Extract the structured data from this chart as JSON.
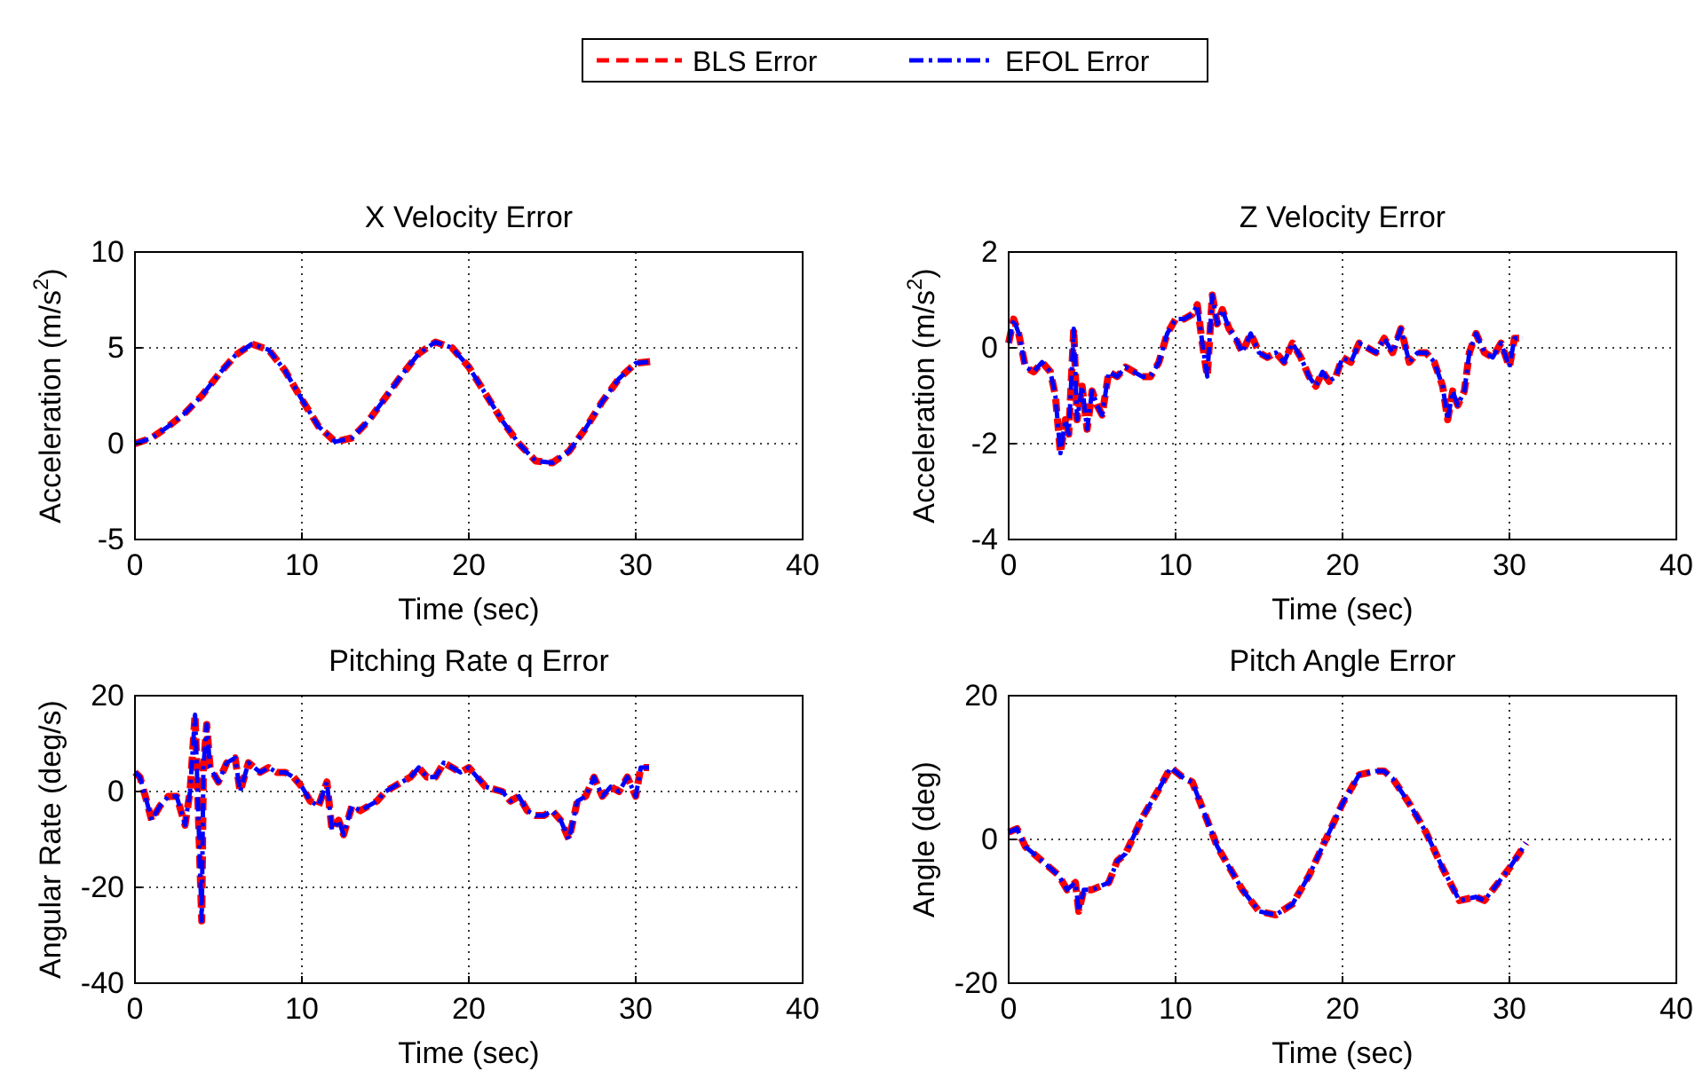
{
  "chart_data": [
    {
      "type": "line",
      "title": "X Velocity Error",
      "xlabel": "Time (sec)",
      "ylabel": "Acceleration (m/s$^{2}$)",
      "xlim": [
        0,
        40
      ],
      "xticks": [
        0,
        10,
        20,
        30,
        40
      ],
      "ylim": [
        -5,
        10
      ],
      "yticks": [
        -5,
        0,
        5,
        10
      ],
      "grid": true,
      "legend": "top",
      "x": [
        0,
        1,
        2,
        3,
        4,
        5,
        6,
        7,
        8,
        9,
        10,
        11,
        12,
        13,
        14,
        15,
        16,
        17,
        18,
        19,
        20,
        21,
        22,
        23,
        24,
        25,
        26,
        27,
        28,
        29,
        30,
        31
      ],
      "series": [
        {
          "name": "BLS Error",
          "color": "#ff0000",
          "line_style": "dashed",
          "values": [
            0,
            0.3,
            0.9,
            1.6,
            2.5,
            3.6,
            4.6,
            5.2,
            4.9,
            3.8,
            2.3,
            0.9,
            0.1,
            0.3,
            1.2,
            2.4,
            3.6,
            4.7,
            5.3,
            5.0,
            4.0,
            2.6,
            1.2,
            0.0,
            -0.9,
            -1.0,
            -0.4,
            0.8,
            2.2,
            3.4,
            4.2,
            4.3
          ]
        },
        {
          "name": "EFOL Error",
          "color": "#0000ff",
          "line_style": "dashdot",
          "values": [
            0,
            0.3,
            0.9,
            1.6,
            2.5,
            3.6,
            4.6,
            5.2,
            4.9,
            3.8,
            2.3,
            0.9,
            0.1,
            0.3,
            1.2,
            2.4,
            3.6,
            4.7,
            5.3,
            5.0,
            4.0,
            2.6,
            1.2,
            0.0,
            -0.9,
            -1.0,
            -0.4,
            0.8,
            2.2,
            3.4,
            4.2,
            4.3
          ]
        }
      ]
    },
    {
      "type": "line",
      "title": "Z Velocity Error",
      "xlabel": "Time (sec)",
      "ylabel": "Acceleration (m/s$^{2}$)",
      "xlim": [
        0,
        40
      ],
      "xticks": [
        0,
        10,
        20,
        30,
        40
      ],
      "ylim": [
        -4,
        2
      ],
      "yticks": [
        -4,
        -2,
        0,
        2
      ],
      "grid": true,
      "x": [
        0,
        0.3,
        0.6,
        1,
        1.5,
        2,
        2.5,
        2.8,
        3.1,
        3.4,
        3.6,
        3.9,
        4.1,
        4.4,
        4.7,
        5,
        5.3,
        5.6,
        6,
        6.5,
        7,
        7.5,
        8,
        8.5,
        9,
        9.5,
        10,
        10.5,
        11,
        11.3,
        11.6,
        11.9,
        12.2,
        12.5,
        12.8,
        13.2,
        13.6,
        14,
        14.5,
        15,
        15.5,
        16,
        16.5,
        17,
        17.5,
        18,
        18.4,
        18.8,
        19.2,
        19.6,
        20,
        20.5,
        21,
        21.5,
        22,
        22.5,
        23,
        23.5,
        24,
        24.5,
        25,
        25.5,
        26,
        26.3,
        26.6,
        26.9,
        27.3,
        27.6,
        28,
        28.5,
        29,
        29.5,
        30,
        30.3,
        30.8
      ],
      "series": [
        {
          "color": "#ff0000",
          "line_style": "dashed",
          "values": [
            0.1,
            0.6,
            0.3,
            -0.4,
            -0.5,
            -0.3,
            -0.5,
            -1.0,
            -2.2,
            -1.5,
            -1.8,
            0.4,
            -1.5,
            -0.8,
            -1.7,
            -0.9,
            -1.2,
            -1.4,
            -0.5,
            -0.6,
            -0.4,
            -0.5,
            -0.6,
            -0.6,
            -0.3,
            0.3,
            0.6,
            0.6,
            0.7,
            0.9,
            0.1,
            -0.6,
            1.1,
            0.5,
            0.8,
            0.4,
            0.2,
            -0.1,
            0.3,
            -0.1,
            -0.2,
            -0.1,
            -0.3,
            0.1,
            -0.2,
            -0.6,
            -0.8,
            -0.5,
            -0.7,
            -0.6,
            -0.2,
            -0.3,
            0.1,
            0.0,
            -0.1,
            0.2,
            -0.1,
            0.4,
            -0.3,
            -0.1,
            -0.1,
            -0.3,
            -0.8,
            -1.5,
            -0.9,
            -1.2,
            -0.9,
            -0.1,
            0.3,
            -0.1,
            -0.2,
            0.1,
            -0.4,
            0.2,
            0.2
          ]
        },
        {
          "color": "#0000ff",
          "line_style": "dashdot",
          "values": [
            0.1,
            0.6,
            0.3,
            -0.4,
            -0.5,
            -0.3,
            -0.5,
            -1.0,
            -2.2,
            -1.5,
            -1.8,
            0.4,
            -1.5,
            -0.8,
            -1.7,
            -0.9,
            -1.2,
            -1.4,
            -0.5,
            -0.6,
            -0.4,
            -0.5,
            -0.6,
            -0.6,
            -0.3,
            0.3,
            0.6,
            0.6,
            0.7,
            0.9,
            0.1,
            -0.6,
            1.1,
            0.5,
            0.8,
            0.4,
            0.2,
            -0.1,
            0.3,
            -0.1,
            -0.2,
            -0.1,
            -0.3,
            0.1,
            -0.2,
            -0.6,
            -0.8,
            -0.5,
            -0.7,
            -0.6,
            -0.2,
            -0.3,
            0.1,
            0.0,
            -0.1,
            0.2,
            -0.1,
            0.4,
            -0.3,
            -0.1,
            -0.1,
            -0.3,
            -0.8,
            -1.5,
            -0.9,
            -1.2,
            -0.9,
            -0.1,
            0.3,
            -0.1,
            -0.2,
            0.1,
            -0.4,
            0.2,
            0.2
          ]
        }
      ]
    },
    {
      "type": "line",
      "title": "Pitching Rate q Error",
      "xlabel": "Time (sec)",
      "ylabel": "Angular Rate (deg/s)",
      "xlim": [
        0,
        40
      ],
      "xticks": [
        0,
        10,
        20,
        30,
        40
      ],
      "ylim": [
        -40,
        20
      ],
      "yticks": [
        -40,
        -20,
        0,
        20
      ],
      "grid": true,
      "x": [
        0,
        0.3,
        0.7,
        1,
        1.5,
        2,
        2.5,
        3,
        3.3,
        3.6,
        3.8,
        4,
        4.1,
        4.3,
        4.5,
        5,
        5.5,
        6,
        6.3,
        6.8,
        7.5,
        8,
        8.5,
        9,
        9.5,
        10,
        10.5,
        11,
        11.5,
        11.8,
        12.2,
        12.5,
        13,
        13.5,
        14,
        14.5,
        15,
        15.5,
        16,
        16.5,
        17,
        17.5,
        18,
        18.5,
        19,
        19.5,
        20,
        20.5,
        21,
        22,
        22.5,
        23,
        23.5,
        24,
        24.5,
        25,
        25.5,
        26,
        26.5,
        27,
        27.5,
        28,
        28.5,
        29,
        29.5,
        30,
        30.3,
        30.8
      ],
      "series": [
        {
          "color": "#ff0000",
          "line_style": "dashed",
          "values": [
            4,
            3,
            -2,
            -6,
            -3,
            -1,
            -1,
            -7,
            0,
            16,
            -5,
            -27,
            5,
            14,
            5,
            2,
            6,
            7,
            0,
            6,
            4,
            5,
            4,
            4,
            3,
            1,
            -2,
            -3,
            2,
            -8,
            -6,
            -9,
            -3,
            -4,
            -3,
            -2,
            0,
            1,
            2,
            3,
            5,
            3,
            3,
            6,
            5,
            4,
            5,
            3,
            1,
            0,
            -2,
            -1,
            -4,
            -5,
            -5,
            -4,
            -6,
            -10,
            -2,
            -1,
            3,
            -1,
            1,
            0,
            3,
            -1,
            5,
            5
          ]
        },
        {
          "color": "#0000ff",
          "line_style": "dashdot",
          "values": [
            4,
            3,
            -2,
            -6,
            -3,
            -1,
            -1,
            -7,
            0,
            16,
            -5,
            -27,
            5,
            14,
            5,
            2,
            6,
            7,
            0,
            6,
            4,
            5,
            4,
            4,
            3,
            1,
            -2,
            -3,
            2,
            -8,
            -6,
            -9,
            -3,
            -4,
            -3,
            -2,
            0,
            1,
            2,
            3,
            5,
            3,
            3,
            6,
            5,
            4,
            5,
            3,
            1,
            0,
            -2,
            -1,
            -4,
            -5,
            -5,
            -4,
            -6,
            -10,
            -2,
            -1,
            3,
            -1,
            1,
            0,
            3,
            -1,
            5,
            5
          ]
        }
      ]
    },
    {
      "type": "line",
      "title": "Pitch Angle Error",
      "xlabel": "Time (sec)",
      "ylabel": "Angle (deg)",
      "xlim": [
        0,
        40
      ],
      "xticks": [
        0,
        10,
        20,
        30,
        40
      ],
      "ylim": [
        -20,
        20
      ],
      "yticks": [
        -20,
        0,
        20
      ],
      "grid": true,
      "x": [
        0,
        0.5,
        1,
        2,
        3,
        3.5,
        4,
        4.2,
        4.5,
        5,
        6,
        6.5,
        7,
        8,
        9,
        9.7,
        10.5,
        11,
        12,
        12.5,
        13,
        14,
        15,
        16,
        17,
        18,
        19,
        20,
        21,
        22,
        22.5,
        23,
        24,
        25,
        26,
        27,
        28,
        28.5,
        29,
        30,
        31
      ],
      "series": [
        {
          "color": "#ff0000",
          "line_style": "dashed",
          "values": [
            1,
            1.5,
            -1,
            -3,
            -5,
            -7,
            -6,
            -10,
            -7,
            -7,
            -6,
            -3,
            -2,
            3,
            7,
            10,
            8.5,
            8,
            2,
            -1,
            -3,
            -7,
            -10,
            -10.5,
            -9,
            -5,
            0,
            5,
            9,
            9.5,
            9.5,
            8.5,
            5,
            1,
            -4,
            -8.5,
            -8,
            -8.5,
            -7,
            -4,
            -0.5
          ]
        },
        {
          "color": "#0000ff",
          "line_style": "dashdot",
          "values": [
            1,
            1.5,
            -1,
            -3,
            -5,
            -7,
            -6,
            -10,
            -7,
            -7,
            -6,
            -3,
            -2,
            3,
            7,
            10,
            8.5,
            8,
            2,
            -1,
            -3,
            -7,
            -10,
            -10.5,
            -9,
            -5,
            0,
            5,
            9,
            9.5,
            9.5,
            8.5,
            5,
            1,
            -4,
            -8.5,
            -8,
            -8.5,
            -7,
            -4,
            -0.5
          ]
        }
      ]
    }
  ]
}
